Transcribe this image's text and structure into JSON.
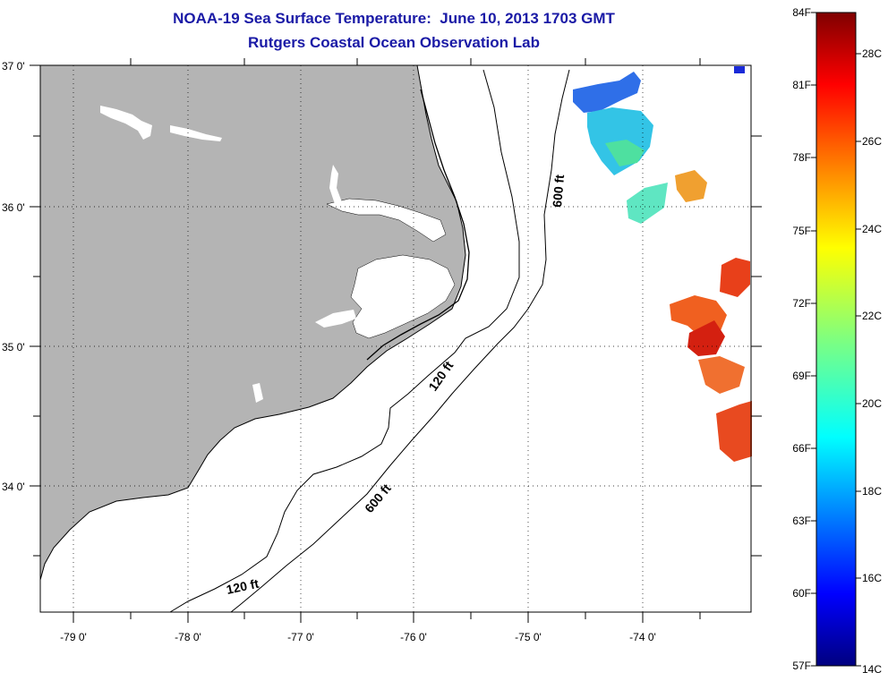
{
  "header": {
    "title": "NOAA-19 Sea Surface Temperature:  June 10, 2013 1703 GMT",
    "subtitle": "Rutgers Coastal Ocean Observation Lab"
  },
  "map": {
    "lon_labels": [
      "-79 0'",
      "-78 0'",
      "-77 0'",
      "-76 0'",
      "-75 0'",
      "-74 0'"
    ],
    "lat_labels": [
      "37 0'",
      "36 0'",
      "35 0'",
      "34 0'"
    ],
    "contour_labels": {
      "shelf_120_a": "120 ft",
      "shelf_120_b": "120 ft",
      "slope_600_a": "600 ft",
      "slope_600_b": "600 ft"
    },
    "colors": {
      "land": "#b4b4b4",
      "water": "#ffffff"
    }
  },
  "colorbar": {
    "fahrenheit_labels": [
      "84F",
      "81F",
      "78F",
      "75F",
      "72F",
      "69F",
      "66F",
      "63F",
      "60F",
      "57F"
    ],
    "celsius_labels": [
      "28C",
      "26C",
      "24C",
      "22C",
      "20C",
      "18C",
      "16C",
      "14C"
    ],
    "range_f": [
      57,
      84
    ],
    "range_c": [
      14,
      29
    ],
    "colormap": "jet"
  }
}
